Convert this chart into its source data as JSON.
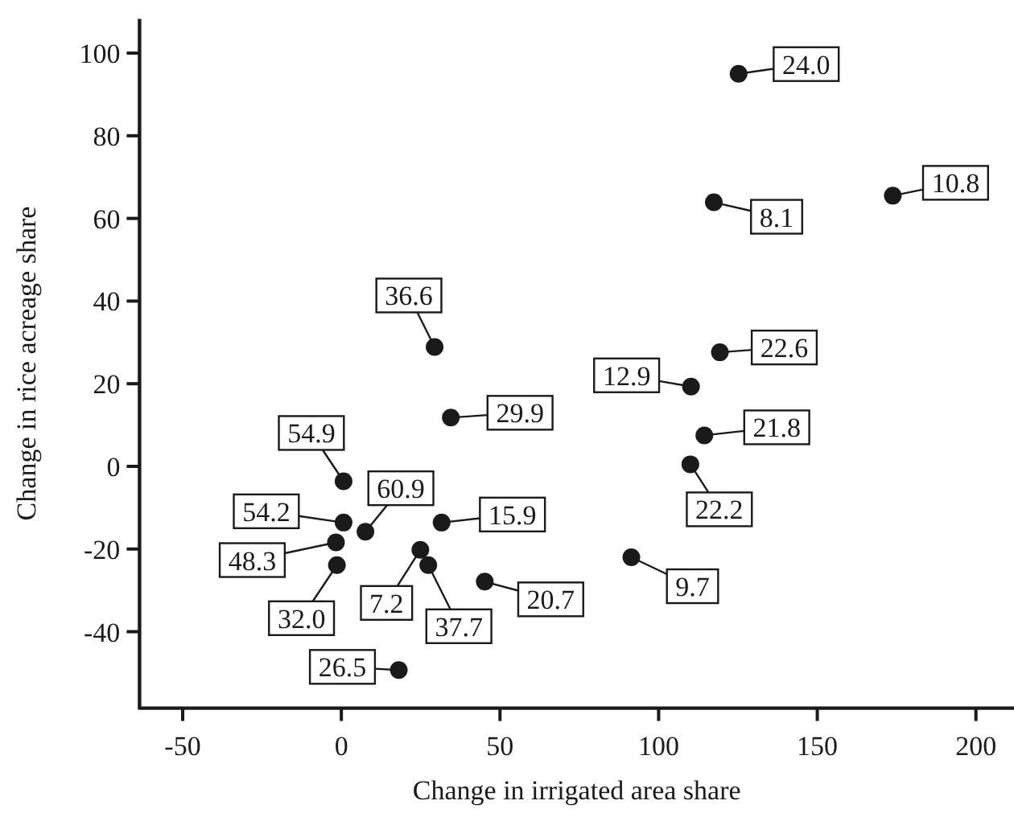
{
  "chart_data": {
    "type": "scatter",
    "xlabel": "Change in irrigated area share",
    "ylabel": "Change in rice acreage share",
    "xlim": [
      -63.6,
      212
    ],
    "ylim": [
      -58.5,
      108.3
    ],
    "xticks": [
      -50,
      0,
      50,
      100,
      150,
      200
    ],
    "yticks": [
      -40,
      -20,
      0,
      20,
      40,
      60,
      80,
      100
    ],
    "grid": false,
    "marker": "circle",
    "series": [
      {
        "color": "#1a1a1a",
        "x": [
          125.2,
          117.4,
          173.8,
          119.3,
          110.2,
          29.4,
          34.5,
          0.7,
          0.7,
          7.6,
          31.6,
          -1.7,
          -1.4,
          24.9,
          27.4,
          45.2,
          18.1,
          114.4,
          110,
          91.4
        ],
        "values": [
          95,
          63.9,
          65.5,
          27.6,
          19.3,
          28.9,
          11.8,
          -3.6,
          -13.6,
          -15.8,
          -13.6,
          -18.4,
          -23.9,
          -20.2,
          -23.9,
          -27.9,
          -49.3,
          7.5,
          0.5,
          -22
        ]
      }
    ],
    "annotations": [
      {
        "text": "24.0",
        "x": 125.2,
        "y": 95
      },
      {
        "text": "8.1",
        "x": 117.4,
        "y": 63.9
      },
      {
        "text": "10.8",
        "x": 173.8,
        "y": 65.5
      },
      {
        "text": "22.6",
        "x": 119.3,
        "y": 27.6
      },
      {
        "text": "12.9",
        "x": 110.2,
        "y": 19.3
      },
      {
        "text": "36.6",
        "x": 29.4,
        "y": 28.9
      },
      {
        "text": "29.9",
        "x": 34.5,
        "y": 11.8
      },
      {
        "text": "54.9",
        "x": 0.7,
        "y": -3.6
      },
      {
        "text": "54.2",
        "x": 0.7,
        "y": -13.6
      },
      {
        "text": "60.9",
        "x": 7.6,
        "y": -15.8
      },
      {
        "text": "15.9",
        "x": 31.6,
        "y": -13.6
      },
      {
        "text": "48.3",
        "x": -1.7,
        "y": -18.4
      },
      {
        "text": "32.0",
        "x": -1.4,
        "y": -23.9
      },
      {
        "text": "7.2",
        "x": 24.9,
        "y": -20.2
      },
      {
        "text": "37.7",
        "x": 27.4,
        "y": -23.9
      },
      {
        "text": "20.7",
        "x": 45.2,
        "y": -27.9
      },
      {
        "text": "26.5",
        "x": 18.1,
        "y": -49.3
      },
      {
        "text": "21.8",
        "x": 114.4,
        "y": 7.5
      },
      {
        "text": "22.2",
        "x": 110,
        "y": 0.5
      },
      {
        "text": "9.7",
        "x": 91.4,
        "y": -22
      }
    ]
  }
}
